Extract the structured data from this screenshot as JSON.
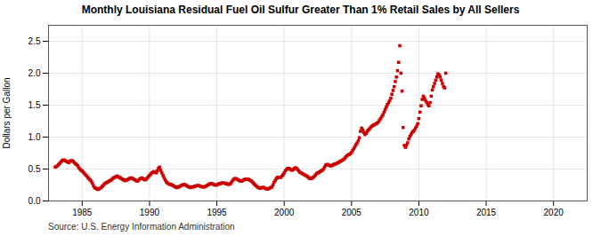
{
  "chart_data": {
    "type": "scatter",
    "title": "Monthly Louisiana Residual Fuel Oil Sulfur Greater Than 1% Retail Sales by All Sellers",
    "ylabel": "Dollars per Gallon",
    "source": "Source: U.S. Energy Information Administration",
    "color": "#cc0000",
    "marker": "square",
    "grid": true,
    "xlim": [
      1982.5,
      2022.5
    ],
    "ylim": [
      0.0,
      2.75
    ],
    "xticks": [
      1985,
      1990,
      1995,
      2000,
      2005,
      2010,
      2015,
      2020
    ],
    "yticks": [
      {
        "value": 0.0,
        "label": "0.0"
      },
      0.5,
      {
        "value": 1.0,
        "label": "1.0"
      },
      1.5,
      {
        "value": 2.0,
        "label": "2.0"
      },
      2.5
    ],
    "x": [
      1983,
      1983.083,
      1983.167,
      1983.25,
      1983.333,
      1983.417,
      1983.5,
      1983.583,
      1983.667,
      1983.75,
      1983.833,
      1983.917,
      1984,
      1984.083,
      1984.167,
      1984.25,
      1984.333,
      1984.417,
      1984.5,
      1984.583,
      1984.667,
      1984.75,
      1984.833,
      1984.917,
      1985,
      1985.083,
      1985.167,
      1985.25,
      1985.333,
      1985.417,
      1985.5,
      1985.583,
      1985.667,
      1985.75,
      1985.833,
      1985.917,
      1986,
      1986.083,
      1986.167,
      1986.25,
      1986.333,
      1986.417,
      1986.5,
      1986.583,
      1986.667,
      1986.75,
      1986.833,
      1986.917,
      1987,
      1987.083,
      1987.167,
      1987.25,
      1987.333,
      1987.417,
      1987.5,
      1987.583,
      1987.667,
      1987.75,
      1987.833,
      1987.917,
      1988,
      1988.083,
      1988.167,
      1988.25,
      1988.333,
      1988.417,
      1988.5,
      1988.583,
      1988.667,
      1988.75,
      1988.833,
      1988.917,
      1989,
      1989.083,
      1989.167,
      1989.25,
      1989.333,
      1989.417,
      1989.5,
      1989.583,
      1989.667,
      1989.75,
      1989.833,
      1989.917,
      1990,
      1990.083,
      1990.167,
      1990.25,
      1990.333,
      1990.417,
      1990.5,
      1990.583,
      1990.667,
      1990.75,
      1990.833,
      1990.917,
      1991,
      1991.083,
      1991.167,
      1991.25,
      1991.333,
      1991.417,
      1991.5,
      1991.583,
      1991.667,
      1991.75,
      1991.833,
      1991.917,
      1992,
      1992.083,
      1992.167,
      1992.25,
      1992.333,
      1992.417,
      1992.5,
      1992.583,
      1992.667,
      1992.75,
      1992.833,
      1992.917,
      1993,
      1993.083,
      1993.167,
      1993.25,
      1993.333,
      1993.417,
      1993.5,
      1993.583,
      1993.667,
      1993.75,
      1993.833,
      1993.917,
      1994,
      1994.083,
      1994.167,
      1994.25,
      1994.333,
      1994.417,
      1994.5,
      1994.583,
      1994.667,
      1994.75,
      1994.833,
      1994.917,
      1995,
      1995.083,
      1995.167,
      1995.25,
      1995.333,
      1995.417,
      1995.5,
      1995.583,
      1995.667,
      1995.75,
      1995.833,
      1995.917,
      1996,
      1996.083,
      1996.167,
      1996.25,
      1996.333,
      1996.417,
      1996.5,
      1996.583,
      1996.667,
      1996.75,
      1996.833,
      1996.917,
      1997,
      1997.083,
      1997.167,
      1997.25,
      1997.333,
      1997.417,
      1997.5,
      1997.583,
      1997.667,
      1997.75,
      1997.833,
      1997.917,
      1998,
      1998.083,
      1998.167,
      1998.25,
      1998.333,
      1998.417,
      1998.5,
      1998.583,
      1998.667,
      1998.75,
      1998.833,
      1998.917,
      1999,
      1999.083,
      1999.167,
      1999.25,
      1999.333,
      1999.417,
      1999.5,
      1999.583,
      1999.667,
      1999.75,
      1999.833,
      1999.917,
      2000,
      2000.083,
      2000.167,
      2000.25,
      2000.333,
      2000.417,
      2000.5,
      2000.583,
      2000.667,
      2000.75,
      2000.833,
      2000.917,
      2001,
      2001.083,
      2001.167,
      2001.25,
      2001.333,
      2001.417,
      2001.5,
      2001.583,
      2001.667,
      2001.75,
      2001.833,
      2001.917,
      2002,
      2002.083,
      2002.167,
      2002.25,
      2002.333,
      2002.417,
      2002.5,
      2002.583,
      2002.667,
      2002.75,
      2002.833,
      2002.917,
      2003,
      2003.083,
      2003.167,
      2003.25,
      2003.333,
      2003.417,
      2003.5,
      2003.583,
      2003.667,
      2003.75,
      2003.833,
      2003.917,
      2004,
      2004.083,
      2004.167,
      2004.25,
      2004.333,
      2004.417,
      2004.5,
      2004.583,
      2004.667,
      2004.75,
      2004.833,
      2004.917,
      2005,
      2005.083,
      2005.167,
      2005.25,
      2005.333,
      2005.417,
      2005.5,
      2005.583,
      2005.667,
      2005.75,
      2005.833,
      2005.917,
      2006,
      2006.083,
      2006.167,
      2006.25,
      2006.333,
      2006.417,
      2006.5,
      2006.583,
      2006.667,
      2006.75,
      2006.833,
      2006.917,
      2007,
      2007.083,
      2007.167,
      2007.25,
      2007.333,
      2007.417,
      2007.5,
      2007.583,
      2007.667,
      2007.75,
      2007.833,
      2007.917,
      2008,
      2008.083,
      2008.167,
      2008.25,
      2008.333,
      2008.417,
      2008.5,
      2008.583,
      2008.667,
      2008.75,
      2008.833,
      2008.917,
      2009,
      2009.083,
      2009.167,
      2009.25,
      2009.333,
      2009.417,
      2009.5,
      2009.583,
      2009.667,
      2009.75,
      2009.833,
      2009.917,
      2010,
      2010.083,
      2010.167,
      2010.25,
      2010.333,
      2010.417,
      2010.5,
      2010.583,
      2010.667,
      2010.75,
      2010.833,
      2010.917,
      2011,
      2011.083,
      2011.167,
      2011.25,
      2011.333,
      2011.417,
      2011.5,
      2011.583,
      2011.667,
      2011.75,
      2011.833,
      2011.917,
      2012
    ],
    "values": [
      0.53,
      0.54,
      0.55,
      0.57,
      0.59,
      0.61,
      0.63,
      0.64,
      0.64,
      0.63,
      0.62,
      0.61,
      0.6,
      0.62,
      0.63,
      0.63,
      0.62,
      0.6,
      0.58,
      0.57,
      0.55,
      0.52,
      0.5,
      0.48,
      0.47,
      0.45,
      0.43,
      0.41,
      0.39,
      0.37,
      0.35,
      0.33,
      0.31,
      0.28,
      0.24,
      0.21,
      0.2,
      0.19,
      0.18,
      0.19,
      0.2,
      0.21,
      0.23,
      0.25,
      0.27,
      0.28,
      0.29,
      0.3,
      0.31,
      0.32,
      0.33,
      0.35,
      0.36,
      0.37,
      0.38,
      0.39,
      0.38,
      0.37,
      0.36,
      0.35,
      0.34,
      0.33,
      0.32,
      0.32,
      0.33,
      0.34,
      0.35,
      0.36,
      0.36,
      0.35,
      0.34,
      0.33,
      0.32,
      0.31,
      0.32,
      0.34,
      0.35,
      0.36,
      0.35,
      0.34,
      0.33,
      0.34,
      0.36,
      0.38,
      0.4,
      0.42,
      0.44,
      0.45,
      0.46,
      0.45,
      0.44,
      0.47,
      0.51,
      0.53,
      0.48,
      0.44,
      0.4,
      0.36,
      0.33,
      0.3,
      0.28,
      0.27,
      0.26,
      0.26,
      0.25,
      0.24,
      0.23,
      0.22,
      0.21,
      0.21,
      0.22,
      0.23,
      0.24,
      0.25,
      0.25,
      0.26,
      0.25,
      0.24,
      0.23,
      0.22,
      0.21,
      0.21,
      0.22,
      0.22,
      0.23,
      0.23,
      0.24,
      0.24,
      0.24,
      0.23,
      0.23,
      0.22,
      0.22,
      0.22,
      0.23,
      0.24,
      0.25,
      0.26,
      0.27,
      0.27,
      0.27,
      0.26,
      0.25,
      0.25,
      0.25,
      0.26,
      0.27,
      0.27,
      0.28,
      0.28,
      0.28,
      0.28,
      0.27,
      0.27,
      0.26,
      0.26,
      0.27,
      0.29,
      0.32,
      0.34,
      0.35,
      0.35,
      0.34,
      0.33,
      0.32,
      0.31,
      0.31,
      0.32,
      0.33,
      0.34,
      0.34,
      0.34,
      0.34,
      0.33,
      0.32,
      0.31,
      0.29,
      0.27,
      0.25,
      0.24,
      0.22,
      0.21,
      0.2,
      0.2,
      0.21,
      0.21,
      0.21,
      0.2,
      0.19,
      0.19,
      0.19,
      0.2,
      0.21,
      0.22,
      0.25,
      0.29,
      0.32,
      0.35,
      0.37,
      0.37,
      0.37,
      0.37,
      0.39,
      0.41,
      0.44,
      0.47,
      0.49,
      0.51,
      0.51,
      0.5,
      0.49,
      0.48,
      0.49,
      0.51,
      0.52,
      0.51,
      0.49,
      0.47,
      0.45,
      0.44,
      0.43,
      0.42,
      0.41,
      0.4,
      0.39,
      0.38,
      0.36,
      0.35,
      0.35,
      0.36,
      0.37,
      0.39,
      0.41,
      0.43,
      0.44,
      0.45,
      0.46,
      0.47,
      0.48,
      0.5,
      0.53,
      0.56,
      0.57,
      0.57,
      0.56,
      0.55,
      0.55,
      0.56,
      0.57,
      0.58,
      0.58,
      0.59,
      0.6,
      0.61,
      0.62,
      0.63,
      0.64,
      0.65,
      0.67,
      0.69,
      0.71,
      0.72,
      0.73,
      0.74,
      0.76,
      0.79,
      0.82,
      0.85,
      0.88,
      0.91,
      0.94,
      0.99,
      1.09,
      1.14,
      1.11,
      1.07,
      1.04,
      1.06,
      1.09,
      1.11,
      1.13,
      1.15,
      1.17,
      1.18,
      1.19,
      1.2,
      1.21,
      1.22,
      1.24,
      1.27,
      1.29,
      1.32,
      1.35,
      1.39,
      1.43,
      1.47,
      1.51,
      1.54,
      1.57,
      1.61,
      1.67,
      1.73,
      1.79,
      1.87,
      1.94,
      2.04,
      2.17,
      2.43,
      2.0,
      1.72,
      1.15,
      0.87,
      0.84,
      0.87,
      0.91,
      0.97,
      1.01,
      1.04,
      1.07,
      1.09,
      1.11,
      1.14,
      1.17,
      1.21,
      1.29,
      1.39,
      1.49,
      1.59,
      1.64,
      1.61,
      1.57,
      1.54,
      1.51,
      1.49,
      1.54,
      1.64,
      1.74,
      1.79,
      1.84,
      1.89,
      1.94,
      1.99,
      1.97,
      1.94,
      1.89,
      1.84,
      1.79,
      1.77,
      2.0
    ]
  }
}
